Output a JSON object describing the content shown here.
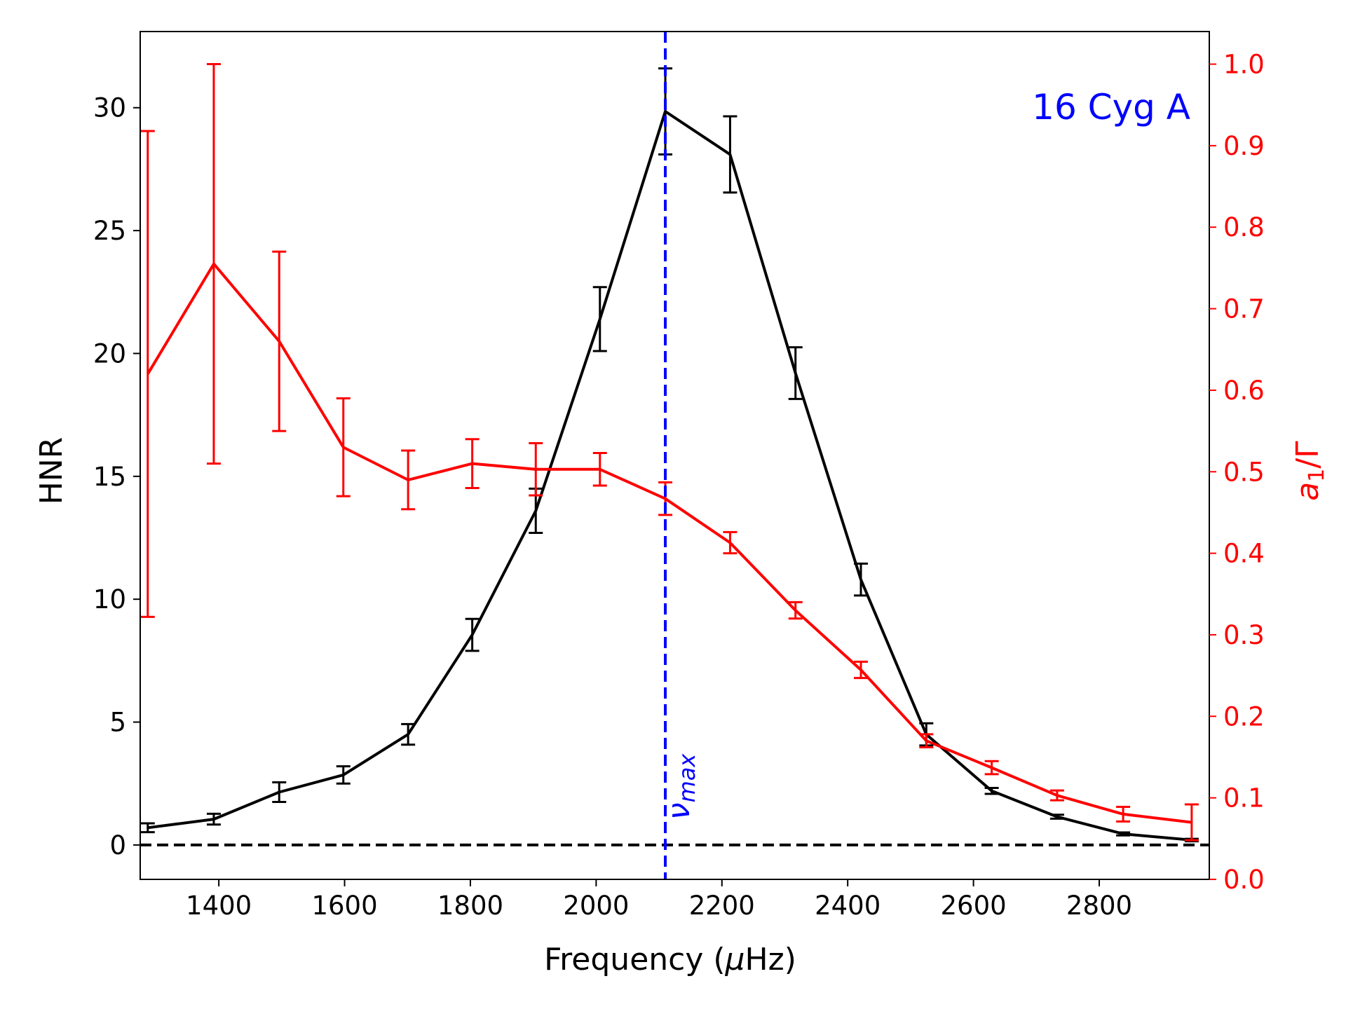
{
  "chart_data": {
    "type": "line",
    "title": "",
    "annotation": "16 Cyg A",
    "vline_label_main": "ν",
    "vline_label_sub": "max",
    "vline_x": 2110,
    "xlabel_pre": "Frequency (",
    "xlabel_mu": "μ",
    "xlabel_post": "Hz)",
    "ylabel": "HNR",
    "y2label_a": "a",
    "y2label_sub": "1",
    "y2label_rest": "/Γ",
    "xlim": [
      1275,
      2975
    ],
    "ylim": [
      -1.4,
      33.1
    ],
    "y2lim": [
      0.0,
      1.04
    ],
    "xticks": [
      1400,
      1600,
      1800,
      2000,
      2200,
      2400,
      2600,
      2800
    ],
    "yticks": [
      0,
      5,
      10,
      15,
      20,
      25,
      30
    ],
    "y2ticks": [
      0.0,
      0.1,
      0.2,
      0.3,
      0.4,
      0.5,
      0.6,
      0.7,
      0.8,
      0.9,
      1.0
    ],
    "hline_y": 0,
    "colors": {
      "hnr": "#000000",
      "ratio": "#ff0000",
      "vline": "#0000ff",
      "hline": "#000000"
    },
    "series": [
      {
        "name": "HNR",
        "axis": "left",
        "x": [
          1287,
          1392,
          1496,
          1598,
          1701,
          1803,
          1904,
          2006,
          2110,
          2213,
          2317,
          2421,
          2525,
          2629,
          2733,
          2838,
          2947
        ],
        "y": [
          0.7,
          1.05,
          2.15,
          2.85,
          4.5,
          8.55,
          13.6,
          21.4,
          29.85,
          28.1,
          19.2,
          10.8,
          4.5,
          2.2,
          1.15,
          0.45,
          0.2
        ],
        "yerr": [
          0.18,
          0.22,
          0.4,
          0.35,
          0.42,
          0.65,
          0.9,
          1.3,
          1.75,
          1.55,
          1.05,
          0.65,
          0.45,
          0.12,
          0.08,
          0.06,
          0.05
        ]
      },
      {
        "name": "a1/Gamma",
        "axis": "right",
        "x": [
          1287,
          1392,
          1496,
          1598,
          1701,
          1803,
          1904,
          2006,
          2110,
          2213,
          2317,
          2421,
          2525,
          2629,
          2733,
          2838,
          2947
        ],
        "y": [
          0.62,
          0.755,
          0.66,
          0.53,
          0.49,
          0.51,
          0.503,
          0.503,
          0.467,
          0.413,
          0.33,
          0.257,
          0.17,
          0.137,
          0.103,
          0.08,
          0.07
        ],
        "yerr": [
          0.298,
          0.245,
          0.11,
          0.06,
          0.036,
          0.03,
          0.032,
          0.02,
          0.02,
          0.013,
          0.01,
          0.01,
          0.008,
          0.008,
          0.006,
          0.009,
          0.022
        ]
      }
    ]
  }
}
